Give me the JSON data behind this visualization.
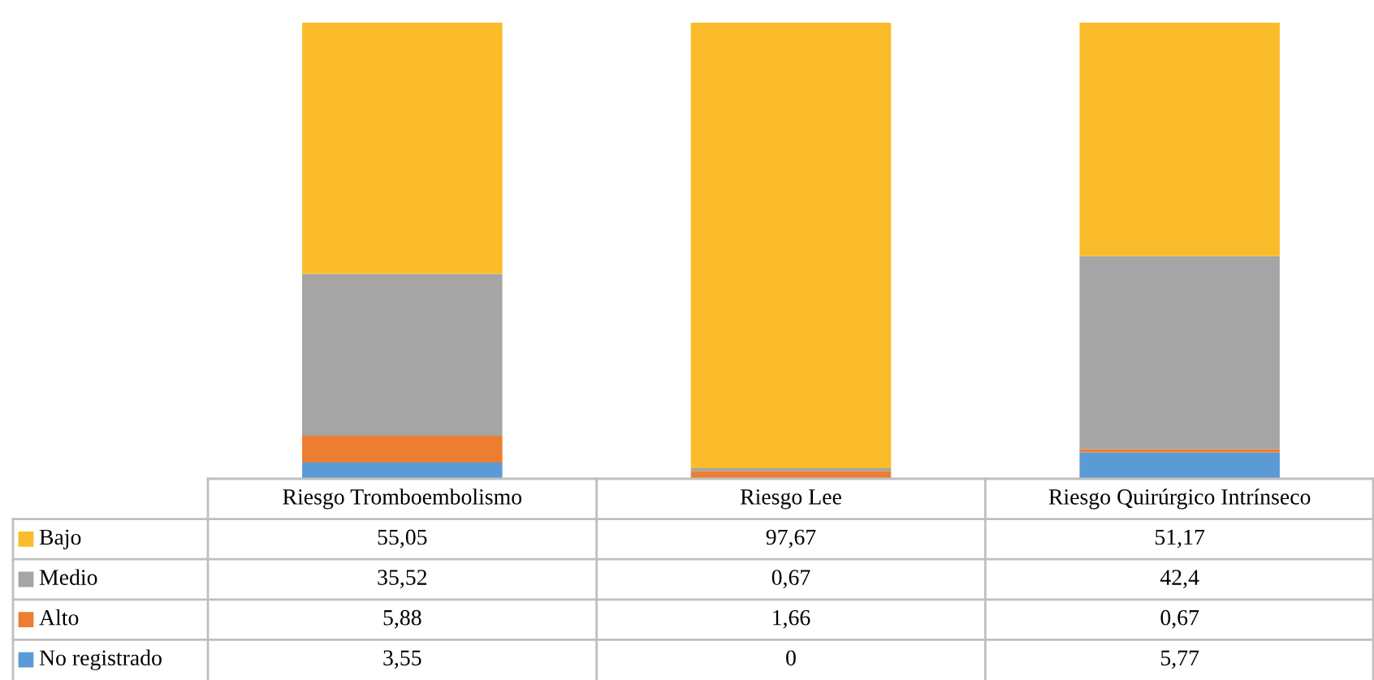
{
  "chart_data": {
    "type": "bar",
    "stacked": true,
    "data_labels": true,
    "legend": "bottom left",
    "categories": [
      "Riesgo Tromboembolismo",
      "Riesgo Lee",
      "Riesgo Quirúrgico Intrínseco"
    ],
    "series": [
      {
        "name": "No registrado",
        "color": "#5b9bd5",
        "values": [
          3.55,
          0,
          5.77
        ],
        "value_labels": [
          "3,55",
          "0",
          "5,77"
        ]
      },
      {
        "name": "Alto",
        "color": "#ed7d31",
        "values": [
          5.88,
          1.66,
          0.67
        ],
        "value_labels": [
          "5,88",
          "1,66",
          "0,67"
        ]
      },
      {
        "name": "Medio",
        "color": "#a5a5a5",
        "values": [
          35.52,
          0.67,
          42.4
        ],
        "value_labels": [
          "35,52",
          "0,67",
          "42,4"
        ]
      },
      {
        "name": "Bajo",
        "color": "#fbbc2b",
        "values": [
          55.05,
          97.67,
          51.17
        ],
        "value_labels": [
          "55,05",
          "97,67",
          "51,17"
        ]
      }
    ]
  }
}
